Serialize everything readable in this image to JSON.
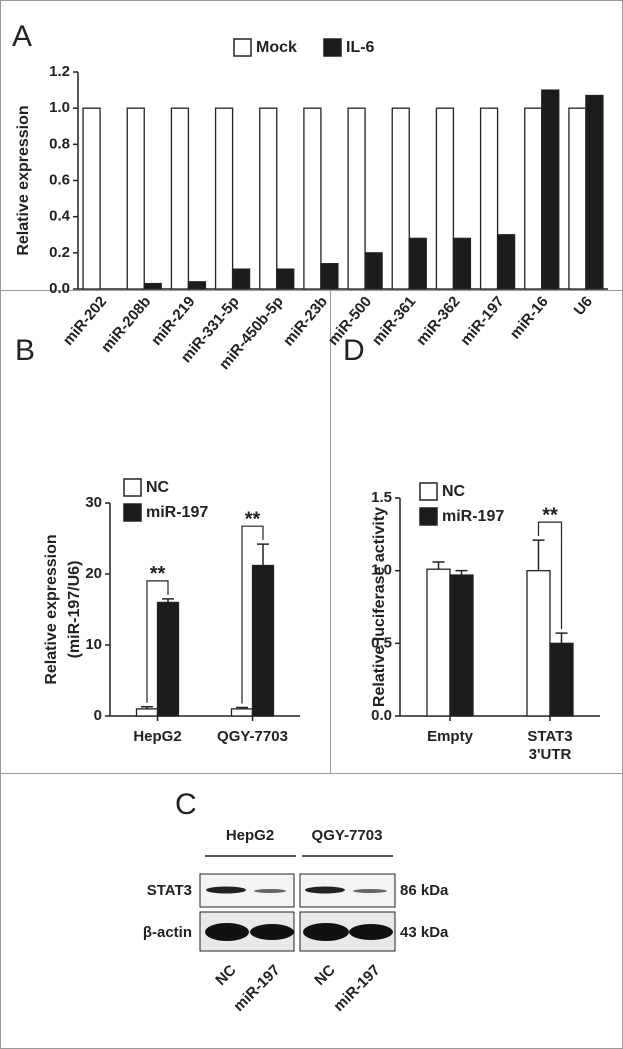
{
  "chart_data": [
    {
      "type": "bar",
      "panel_label": "A",
      "y_label": "Relative expression",
      "categories": [
        "miR-202",
        "miR-208b",
        "miR-219",
        "miR-331-5p",
        "miR-450b-5p",
        "miR-23b",
        "miR-500",
        "miR-361",
        "miR-362",
        "miR-197",
        "miR-16",
        "U6"
      ],
      "series": [
        {
          "name": "Mock",
          "color": "#ffffff",
          "values": [
            1,
            1,
            1,
            1,
            1,
            1,
            1,
            1,
            1,
            1,
            1,
            1
          ]
        },
        {
          "name": "IL-6",
          "color": "#1c1c1c",
          "values": [
            0,
            0.03,
            0.04,
            0.11,
            0.11,
            0.14,
            0.2,
            0.28,
            0.28,
            0.3,
            1.1,
            1.07
          ]
        }
      ],
      "ylim": [
        0,
        1.2
      ],
      "yticks": [
        {
          "value": 0,
          "label": "0.0"
        },
        0.2,
        0.4,
        0.6,
        0.8,
        {
          "value": 1,
          "label": "1.0"
        },
        1.2
      ],
      "legend": "top"
    },
    {
      "type": "bar",
      "panel_label": "B",
      "y_label": [
        "Relative expression",
        "(miR-197/U6)"
      ],
      "categories": [
        "HepG2",
        "QGY-7703"
      ],
      "series": [
        {
          "name": "NC",
          "color": "#ffffff",
          "values": [
            1,
            1
          ],
          "errors": [
            0.3,
            0.2
          ]
        },
        {
          "name": "miR-197",
          "color": "#1c1c1c",
          "values": [
            16,
            21.2
          ],
          "errors": [
            0.5,
            3
          ]
        }
      ],
      "ylim": [
        0,
        30
      ],
      "yticks": [
        0,
        10,
        20,
        30
      ],
      "annotations": [
        "**",
        "**"
      ],
      "legend": "upper left"
    },
    {
      "type": "bar",
      "panel_label": "D",
      "y_label": "Relative luciferase activity",
      "categories": [
        "Empty",
        "STAT3 3'UTR"
      ],
      "series": [
        {
          "name": "NC",
          "color": "#ffffff",
          "values": [
            1.01,
            1
          ],
          "errors": [
            0.05,
            0.21
          ]
        },
        {
          "name": "miR-197",
          "color": "#1c1c1c",
          "values": [
            0.97,
            0.5
          ],
          "errors": [
            0.03,
            0.07
          ]
        }
      ],
      "ylim": [
        0,
        1.5
      ],
      "yticks": [
        {
          "value": 0,
          "label": "0.0"
        },
        0.5,
        {
          "value": 1,
          "label": "1.0"
        },
        1.5
      ],
      "annotations": [
        null,
        "**"
      ],
      "legend": "upper left"
    }
  ],
  "blot": {
    "panel_label": "C",
    "groups": [
      "HepG2",
      "QGY-7703"
    ],
    "rows": [
      {
        "protein": "STAT3",
        "size": "86 kDa"
      },
      {
        "protein": "β-actin",
        "size": "43 kDa"
      }
    ],
    "lanes": [
      "NC",
      "miR-197",
      "NC",
      "miR-197"
    ]
  }
}
